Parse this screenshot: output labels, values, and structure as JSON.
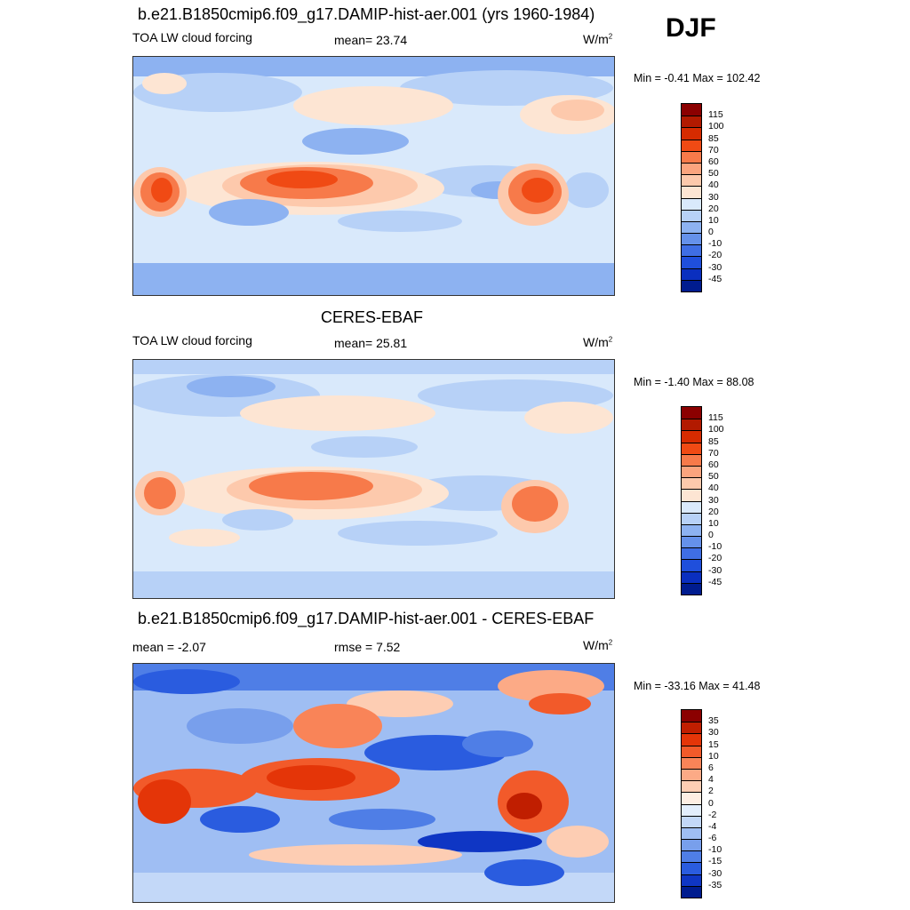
{
  "season": "DJF",
  "panels": [
    {
      "id": "model",
      "title": "b.e21.B1850cmip6.f09_g17.DAMIP-hist-aer.001 (yrs 1960-1984)",
      "left_label": "TOA LW cloud forcing",
      "center_label": "mean=  23.74",
      "units": "W/m",
      "units_sup": "2",
      "minmax": "Min =  -0.41 Max = 102.42",
      "colorbar": {
        "labels": [
          "115",
          "100",
          "85",
          "70",
          "60",
          "50",
          "40",
          "30",
          "20",
          "10",
          "0",
          "-10",
          "-20",
          "-30",
          "-45"
        ],
        "colors": [
          "#8b0000",
          "#b21a00",
          "#d62b00",
          "#f04a14",
          "#f77a4a",
          "#fba47e",
          "#fdc9ac",
          "#fde5d3",
          "#d9e9fb",
          "#b7d1f7",
          "#8db2f1",
          "#6591ea",
          "#3f6ee4",
          "#1f4fdc",
          "#0a2fbf",
          "#001c8f"
        ]
      }
    },
    {
      "id": "obs",
      "title": "CERES-EBAF",
      "left_label": "TOA LW cloud forcing",
      "center_label": "mean=  25.81",
      "units": "W/m",
      "units_sup": "2",
      "minmax": "Min =  -1.40 Max =  88.08",
      "colorbar": {
        "labels": [
          "115",
          "100",
          "85",
          "70",
          "60",
          "50",
          "40",
          "30",
          "20",
          "10",
          "0",
          "-10",
          "-20",
          "-30",
          "-45"
        ],
        "colors": [
          "#8b0000",
          "#b21a00",
          "#d62b00",
          "#f04a14",
          "#f77a4a",
          "#fba47e",
          "#fdc9ac",
          "#fde5d3",
          "#d9e9fb",
          "#b7d1f7",
          "#8db2f1",
          "#6591ea",
          "#3f6ee4",
          "#1f4fdc",
          "#0a2fbf",
          "#001c8f"
        ]
      }
    },
    {
      "id": "diff",
      "title": "b.e21.B1850cmip6.f09_g17.DAMIP-hist-aer.001 - CERES-EBAF",
      "left_label": "mean =  -2.07",
      "center_label": "rmse =   7.52",
      "units": "W/m",
      "units_sup": "2",
      "minmax": "Min = -33.16 Max =  41.48",
      "colorbar": {
        "labels": [
          "35",
          "30",
          "15",
          "10",
          "6",
          "4",
          "2",
          "0",
          "-2",
          "-4",
          "-6",
          "-10",
          "-15",
          "-30",
          "-35"
        ],
        "colors": [
          "#8b0000",
          "#c01e00",
          "#e43508",
          "#f25a2a",
          "#f98458",
          "#fcaa86",
          "#fdcdb3",
          "#feeee3",
          "#e3eefc",
          "#c3d8f8",
          "#9fbef3",
          "#789fec",
          "#4f7ee6",
          "#2a5cdf",
          "#0f36c4",
          "#001c8f"
        ]
      }
    }
  ]
}
